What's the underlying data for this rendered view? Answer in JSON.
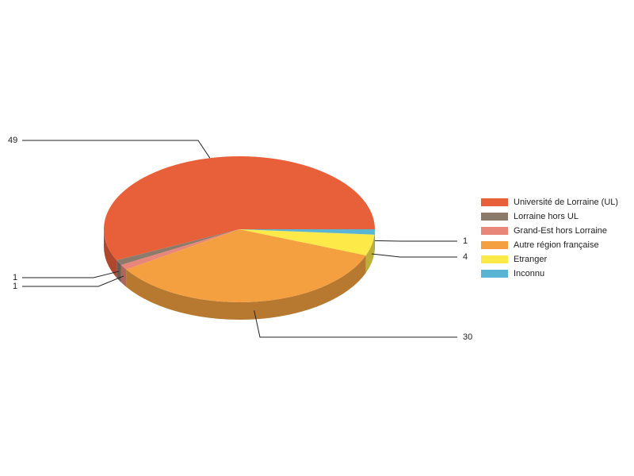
{
  "chart_data": {
    "type": "pie3d",
    "categories": [
      "Université de Lorraine (UL)",
      "Lorraine hors UL",
      "Grand-Est hors Lorraine",
      "Autre région française",
      "Etranger",
      "Inconnu"
    ],
    "values": [
      49,
      1,
      1,
      30,
      4,
      1
    ],
    "colors": [
      "#e8603a",
      "#8c7b6b",
      "#e8867a",
      "#f4a040",
      "#fdea48",
      "#5ab4d4"
    ],
    "legend": "right"
  }
}
